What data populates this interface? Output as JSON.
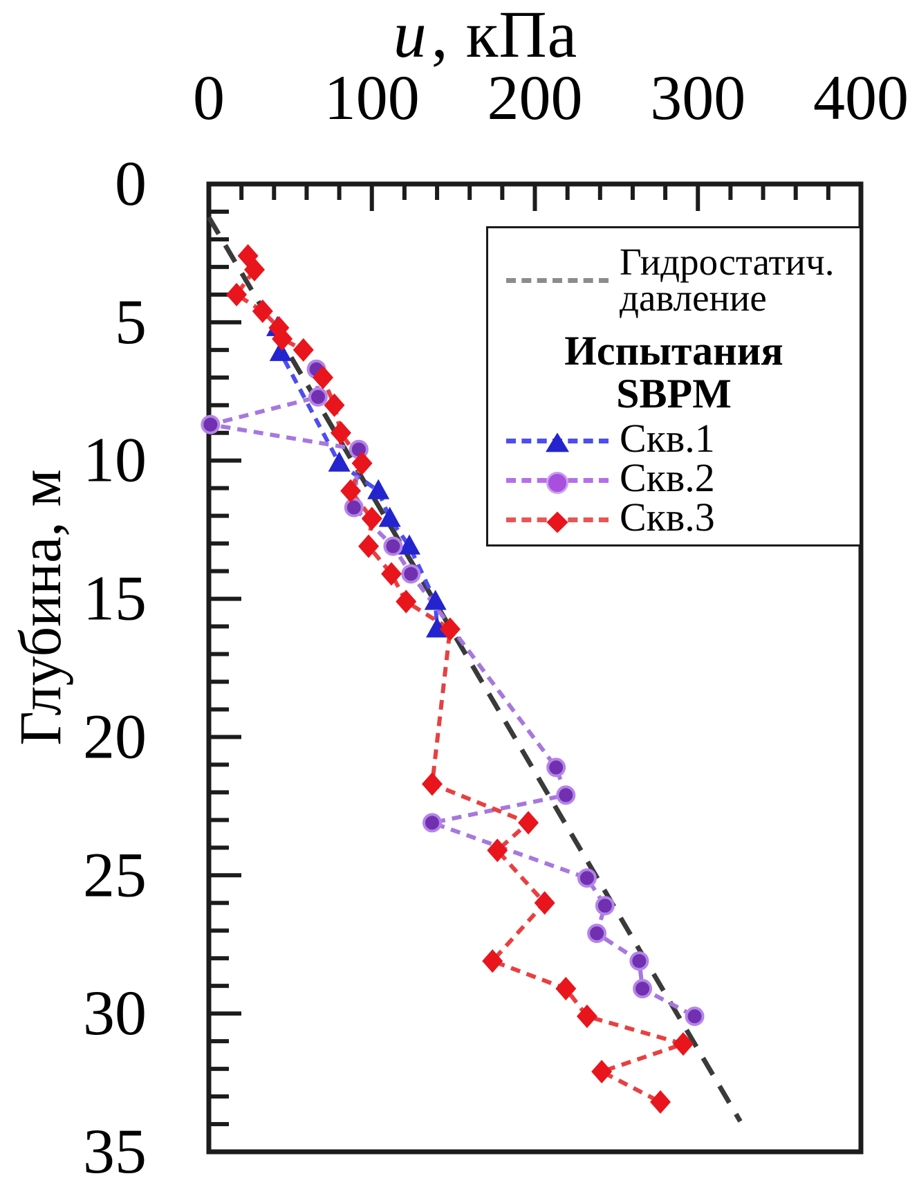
{
  "figure": {
    "title": {
      "variable": "u",
      "rest": ", кПа"
    },
    "ylabel": "Глубина, м"
  },
  "legend": {
    "hydrostatic": {
      "line1": "Гидростатич.",
      "line2": "давление"
    },
    "header_line1": "Испытания",
    "header_line2": "SBPM",
    "items": [
      {
        "label": "Скв.1",
        "marker": "triangle"
      },
      {
        "label": "Скв.2",
        "marker": "circle"
      },
      {
        "label": "Скв.3",
        "marker": "diamond"
      }
    ]
  },
  "colors": {
    "axis": "#1c1c1c",
    "hydrostatic_line": "#3a3a3a",
    "hydrostatic_legend_sample": "#8c8c8c",
    "skv1_marker": "#2424ce",
    "skv1_line": "#4d4df0",
    "skv2_marker": "#7030b0",
    "skv2_marker_edge": "#b584e8",
    "skv2_line": "#a678dd",
    "skv3_marker": "#e8151c",
    "skv3_line": "#e84040"
  },
  "chart_data": {
    "type": "scatter",
    "title": "u, кПа",
    "xlabel": "u, кПа (top axis)",
    "ylabel": "Глубина, м (depth, increases downward)",
    "xlim": [
      0,
      400
    ],
    "ylim": [
      0,
      35
    ],
    "x_ticks": [
      0,
      100,
      200,
      300,
      400
    ],
    "x_minor_step": 20,
    "y_ticks": [
      0,
      5,
      10,
      15,
      20,
      25,
      30,
      35
    ],
    "y_minor_step": 1,
    "grid": false,
    "legend_position": "upper right",
    "series": [
      {
        "name": "Гидростатич. давление",
        "marker": "none",
        "style": "dashed",
        "points_u_kpa_depth_m": [
          [
            0,
            1.2
          ],
          [
            326,
            33.9
          ]
        ]
      },
      {
        "name": "Скв.1",
        "marker": "triangle",
        "style": "dashed",
        "points_u_kpa_depth_m": [
          [
            42,
            5.2
          ],
          [
            44,
            6.1
          ],
          [
            80,
            10.1
          ],
          [
            104,
            11.1
          ],
          [
            111,
            12.1
          ],
          [
            123,
            13.1
          ],
          [
            139,
            15.1
          ],
          [
            140,
            16.1
          ]
        ]
      },
      {
        "name": "Скв.2",
        "marker": "circle",
        "style": "dashed",
        "points_u_kpa_depth_m": [
          [
            66,
            6.7
          ],
          [
            67,
            7.7
          ],
          [
            1,
            8.7
          ],
          [
            92,
            9.6
          ],
          [
            89,
            11.7
          ],
          [
            113,
            13.1
          ],
          [
            124,
            14.1
          ],
          [
            213,
            21.1
          ],
          [
            219,
            22.1
          ],
          [
            137,
            23.1
          ],
          [
            232,
            25.1
          ],
          [
            243,
            26.1
          ],
          [
            238,
            27.1
          ],
          [
            264,
            28.1
          ],
          [
            266,
            29.1
          ],
          [
            298,
            30.1
          ]
        ]
      },
      {
        "name": "Скв.3",
        "marker": "diamond",
        "style": "dashed",
        "points_u_kpa_depth_m": [
          [
            24,
            2.6
          ],
          [
            28,
            3.1
          ],
          [
            17,
            4.0
          ],
          [
            33,
            4.6
          ],
          [
            43,
            5.2
          ],
          [
            45,
            5.6
          ],
          [
            58,
            6.0
          ],
          [
            70,
            7.0
          ],
          [
            77,
            8.0
          ],
          [
            81,
            9.0
          ],
          [
            94,
            10.1
          ],
          [
            87,
            11.1
          ],
          [
            100,
            12.1
          ],
          [
            98,
            13.1
          ],
          [
            112,
            14.1
          ],
          [
            121,
            15.1
          ],
          [
            148,
            16.1
          ],
          [
            137,
            21.7
          ],
          [
            196,
            23.1
          ],
          [
            177,
            24.1
          ],
          [
            206,
            26.0
          ],
          [
            174,
            28.1
          ],
          [
            219,
            29.1
          ],
          [
            232,
            30.1
          ],
          [
            291,
            31.1
          ],
          [
            241,
            32.1
          ],
          [
            277,
            33.2
          ]
        ]
      }
    ]
  }
}
